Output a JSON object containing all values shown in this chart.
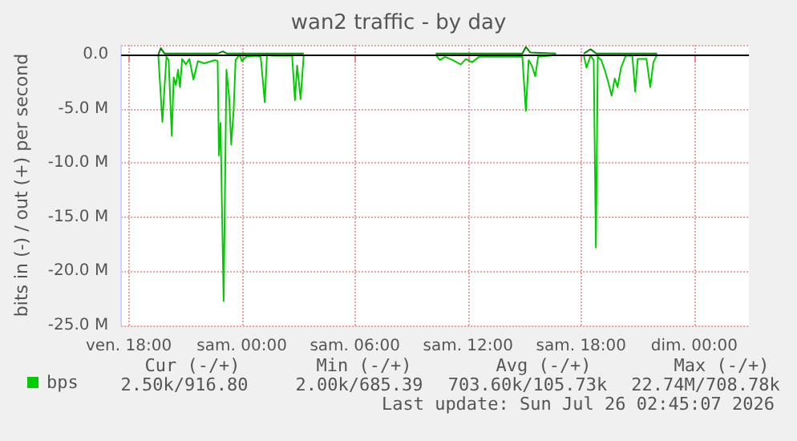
{
  "chart_data": {
    "type": "line",
    "title": "wan2 traffic - by day",
    "ylabel": "bits in (-) / out (+) per second",
    "xlim": [
      "2026-07-24T17:36",
      "2026-07-26T02:54"
    ],
    "xticks": [
      {
        "value": "2026-07-24T18:00",
        "label": "ven. 18:00"
      },
      {
        "value": "2026-07-25T00:00",
        "label": "sam. 00:00"
      },
      {
        "value": "2026-07-25T06:00",
        "label": "sam. 06:00"
      },
      {
        "value": "2026-07-25T12:00",
        "label": "sam. 12:00"
      },
      {
        "value": "2026-07-25T18:00",
        "label": "sam. 18:00"
      },
      {
        "value": "2026-07-26T00:00",
        "label": "dim. 00:00"
      }
    ],
    "ylim": [
      -25000000,
      900000
    ],
    "yticks": [
      {
        "value": -25000000,
        "label": "-25.0 M"
      },
      {
        "value": -20000000,
        "label": "-20.0 M"
      },
      {
        "value": -15000000,
        "label": "-15.0 M"
      },
      {
        "value": -10000000,
        "label": "-10.0 M"
      },
      {
        "value": -5000000,
        "label": "-5.0 M"
      },
      {
        "value": 0,
        "label": "0.0"
      }
    ],
    "grid": true,
    "legend": "bottom left",
    "line_style": "solid",
    "series": [
      {
        "name": "bps",
        "color": "#00cc00",
        "x": [
          "2026-07-24T19:34",
          "2026-07-24T19:47",
          "2026-07-24T20:00",
          "2026-07-24T20:07",
          "2026-07-24T20:17",
          "2026-07-24T20:23",
          "2026-07-24T20:30",
          "2026-07-24T20:37",
          "2026-07-24T20:43",
          "2026-07-24T20:50",
          "2026-07-24T21:02",
          "2026-07-24T21:13",
          "2026-07-24T21:26",
          "2026-07-24T21:40",
          "2026-07-24T22:00",
          "2026-07-24T22:34",
          "2026-07-24T22:43",
          "2026-07-24T22:47",
          "2026-07-24T22:52",
          "2026-07-24T23:02",
          "2026-07-24T23:11",
          "2026-07-24T23:20",
          "2026-07-24T23:26",
          "2026-07-24T23:34",
          "2026-07-24T23:40",
          "2026-07-24T23:53",
          "2026-07-25T00:00",
          "2026-07-25T00:13",
          "2026-07-25T00:47",
          "2026-07-25T01:00",
          "2026-07-25T01:13",
          "2026-07-25T01:20",
          "2026-07-25T01:37",
          "2026-07-25T02:40",
          "2026-07-25T02:49",
          "2026-07-25T02:56",
          "2026-07-25T03:07",
          "2026-07-25T03:17",
          "2026-07-25T06:00",
          "2026-07-25T10:17",
          "2026-07-25T10:30",
          "2026-07-25T10:47",
          "2026-07-25T11:11",
          "2026-07-25T11:37",
          "2026-07-25T11:53",
          "2026-07-25T12:13",
          "2026-07-25T12:35",
          "2026-07-25T13:34",
          "2026-07-25T14:53",
          "2026-07-25T15:04",
          "2026-07-25T15:13",
          "2026-07-25T15:23",
          "2026-07-25T15:34",
          "2026-07-25T15:43",
          "2026-07-25T16:20",
          "2026-07-25T16:40",
          "2026-07-25T17:30",
          "2026-07-25T18:08",
          "2026-07-25T18:17",
          "2026-07-25T18:30",
          "2026-07-25T18:40",
          "2026-07-25T18:47",
          "2026-07-25T18:53",
          "2026-07-25T19:04",
          "2026-07-25T19:15",
          "2026-07-25T19:26",
          "2026-07-25T19:37",
          "2026-07-25T19:47",
          "2026-07-25T19:56",
          "2026-07-25T20:07",
          "2026-07-25T20:22",
          "2026-07-25T20:43",
          "2026-07-25T20:52",
          "2026-07-25T21:00",
          "2026-07-25T21:28",
          "2026-07-25T21:40",
          "2026-07-25T21:50",
          "2026-07-25T22:02"
        ],
        "values": [
          0,
          -6200000,
          -200000,
          -500000,
          -7500000,
          -2100000,
          -2800000,
          -1400000,
          -3000000,
          -400000,
          -900000,
          -400000,
          -2300000,
          -600000,
          -800000,
          -500000,
          -600000,
          -9300000,
          -6300000,
          -22740000,
          -1400000,
          -4100000,
          -8300000,
          -5100000,
          -500000,
          0,
          -600000,
          -200000,
          -100000,
          -200000,
          -4400000,
          0,
          -100000,
          -100000,
          -4200000,
          -1000000,
          -4100000,
          0,
          null,
          0,
          -500000,
          -200000,
          -500000,
          -900000,
          -400000,
          -700000,
          -200000,
          -200000,
          -200000,
          -5200000,
          -500000,
          -1000000,
          -2000000,
          -200000,
          -100000,
          0,
          null,
          0,
          -1200000,
          -100000,
          -500000,
          -17800000,
          -200000,
          -500000,
          -1400000,
          -2500000,
          -3800000,
          -2200000,
          -3000000,
          -1200000,
          -100000,
          -100000,
          -3400000,
          -400000,
          -400000,
          -3000000,
          -700000,
          0
        ]
      },
      {
        "color": "#008800",
        "x": [
          "2026-07-24T19:34",
          "2026-07-24T19:42",
          "2026-07-24T19:54",
          "2026-07-24T22:42",
          "2026-07-24T23:00",
          "2026-07-24T23:12",
          "2026-07-25T03:17",
          "2026-07-25T06:00",
          "2026-07-25T10:17",
          "2026-07-25T14:53",
          "2026-07-25T15:04",
          "2026-07-25T15:18",
          "2026-07-25T16:40",
          "2026-07-25T17:30",
          "2026-07-25T18:08",
          "2026-07-25T18:30",
          "2026-07-25T18:48",
          "2026-07-25T22:02"
        ],
        "values": [
          0,
          600000,
          100000,
          100000,
          300000,
          100000,
          100000,
          null,
          100000,
          100000,
          700000,
          200000,
          100000,
          null,
          100000,
          500000,
          100000,
          100000
        ]
      }
    ],
    "ref_lines": [
      {
        "axis": "y",
        "value": 0,
        "color": "#000000"
      }
    ],
    "annotations": [
      "Cur (-/+)",
      "Min (-/+)",
      "Avg (-/+)",
      "Max (-/+)",
      "2.50k/916.80",
      "2.00k/685.39",
      "703.60k/105.73k",
      "22.74M/708.78k",
      "Last update: Sun Jul 26 02:45:07 2026"
    ]
  }
}
